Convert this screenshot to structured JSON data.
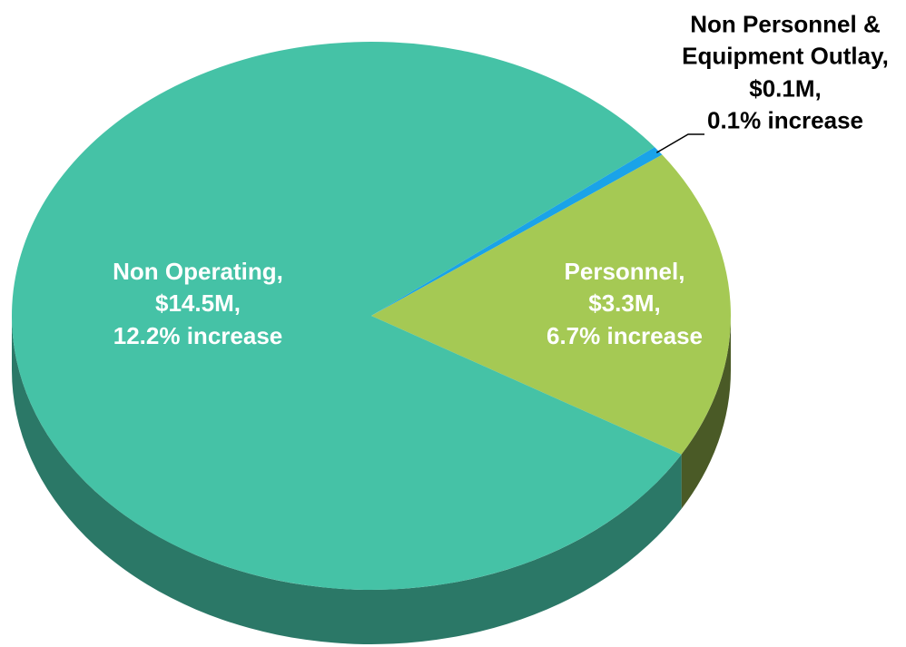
{
  "chart_data": {
    "type": "pie",
    "categories": [
      "Non Operating,",
      "Personnel,",
      "Non Personnel & Equipment Outlay,"
    ],
    "values": [
      14.5,
      3.3,
      0.1
    ],
    "value_labels": [
      "$14.5M,",
      "$3.3M,",
      "$0.1M,"
    ],
    "annotations": [
      "12.2% increase",
      "6.7% increase",
      "0.1% increase"
    ],
    "colors": [
      "#45c2a6",
      "#a5c954",
      "#1aa3e8"
    ],
    "label_colors": [
      "#ffffff",
      "#ffffff",
      "#000000"
    ]
  }
}
